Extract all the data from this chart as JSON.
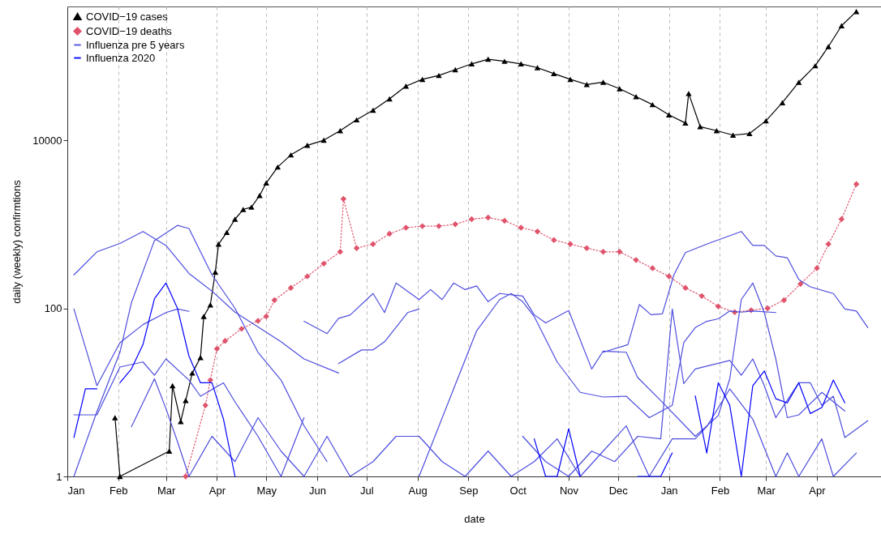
{
  "chart_data": {
    "type": "line",
    "xlabel": "date",
    "ylabel": "daily (weekly) confirmtions",
    "log": true,
    "grid": "x",
    "legend": "top left",
    "xlim": [
      "2020-01-01",
      "2021-05-10"
    ],
    "ylim": [
      1,
      390000
    ],
    "yticks": [
      1,
      100,
      10000
    ],
    "xticks": [
      {
        "value": "2020-01-01",
        "label": "Jan"
      },
      {
        "value": "2020-02-01",
        "label": "Feb"
      },
      {
        "value": "2020-03-01",
        "label": "Mar"
      },
      {
        "value": "2020-04-01",
        "label": "Apr"
      },
      {
        "value": "2020-05-01",
        "label": "May"
      },
      {
        "value": "2020-06-01",
        "label": "Jun"
      },
      {
        "value": "2020-07-01",
        "label": "Jul"
      },
      {
        "value": "2020-08-01",
        "label": "Aug"
      },
      {
        "value": "2020-09-01",
        "label": "Sep"
      },
      {
        "value": "2020-10-01",
        "label": "Oct"
      },
      {
        "value": "2020-11-01",
        "label": "Nov"
      },
      {
        "value": "2020-12-01",
        "label": "Dec"
      },
      {
        "value": "2021-01-01",
        "label": "Jan"
      },
      {
        "value": "2021-02-01",
        "label": "Feb"
      },
      {
        "value": "2021-03-01",
        "label": "Mar"
      },
      {
        "value": "2021-04-01",
        "label": "Apr"
      }
    ],
    "series": [
      {
        "name": "COVID−19 cases",
        "color": "#000000",
        "marker": "triangle",
        "line_style": "solid",
        "x": [
          "2020-01-30",
          "2020-02-02",
          "2020-03-03",
          "2020-03-05",
          "2020-03-10",
          "2020-03-13",
          "2020-03-17",
          "2020-03-22",
          "2020-03-24",
          "2020-03-28",
          "2020-03-31",
          "2020-04-02",
          "2020-04-07",
          "2020-04-12",
          "2020-04-17",
          "2020-04-22",
          "2020-04-27",
          "2020-05-01",
          "2020-05-08",
          "2020-05-16",
          "2020-05-26",
          "2020-06-05",
          "2020-06-15",
          "2020-06-25",
          "2020-07-05",
          "2020-07-15",
          "2020-07-25",
          "2020-08-04",
          "2020-08-14",
          "2020-08-24",
          "2020-09-03",
          "2020-09-13",
          "2020-09-23",
          "2020-10-03",
          "2020-10-13",
          "2020-10-23",
          "2020-11-02",
          "2020-11-12",
          "2020-11-22",
          "2020-12-02",
          "2020-12-12",
          "2020-12-22",
          "2021-01-01",
          "2021-01-11",
          "2021-01-13",
          "2021-01-20",
          "2021-01-30",
          "2021-02-09",
          "2021-02-19",
          "2021-03-01",
          "2021-03-11",
          "2021-03-21",
          "2021-03-31",
          "2021-04-08",
          "2021-04-16",
          "2021-04-25"
        ],
        "values": [
          5,
          1,
          2,
          12,
          4.5,
          8,
          17,
          26,
          80,
          110,
          270,
          580,
          800,
          1150,
          1500,
          1600,
          2200,
          3100,
          4800,
          6700,
          8700,
          10000,
          13000,
          17500,
          22800,
          31000,
          44000,
          53000,
          59000,
          69000,
          81000,
          92000,
          87000,
          81000,
          73000,
          62000,
          53000,
          46000,
          49000,
          41000,
          33000,
          26500,
          20000,
          16000,
          36000,
          14500,
          13000,
          11500,
          12000,
          17000,
          28000,
          49000,
          77000,
          130000,
          230000,
          340000
        ]
      },
      {
        "name": "COVID−19 deaths",
        "color": "#df536b",
        "marker": "diamond",
        "line_style": "dotted",
        "x": [
          "2020-03-13",
          "2020-03-25",
          "2020-03-28",
          "2020-04-01",
          "2020-04-06",
          "2020-04-16",
          "2020-04-26",
          "2020-05-01",
          "2020-05-06",
          "2020-05-16",
          "2020-05-26",
          "2020-06-05",
          "2020-06-15",
          "2020-06-17",
          "2020-06-25",
          "2020-07-05",
          "2020-07-15",
          "2020-07-25",
          "2020-08-04",
          "2020-08-14",
          "2020-08-24",
          "2020-09-03",
          "2020-09-13",
          "2020-09-23",
          "2020-10-03",
          "2020-10-13",
          "2020-10-23",
          "2020-11-02",
          "2020-11-12",
          "2020-11-22",
          "2020-12-02",
          "2020-12-12",
          "2020-12-22",
          "2021-01-01",
          "2021-01-11",
          "2021-01-21",
          "2021-01-31",
          "2021-02-10",
          "2021-02-20",
          "2021-03-02",
          "2021-03-12",
          "2021-03-22",
          "2021-04-01",
          "2021-04-08",
          "2021-04-16",
          "2021-04-25"
        ],
        "values": [
          1,
          7,
          14,
          33,
          41,
          57,
          71,
          80,
          125,
          175,
          240,
          340,
          470,
          2000,
          520,
          580,
          770,
          910,
          950,
          950,
          1000,
          1150,
          1200,
          1100,
          910,
          820,
          650,
          580,
          520,
          470,
          470,
          375,
          300,
          240,
          175,
          140,
          105,
          90,
          95,
          100,
          125,
          195,
          300,
          580,
          1150,
          3000
        ]
      },
      {
        "name": "Influenza pre 5 years",
        "color": "#4d4dde",
        "marker": "none",
        "line_style": "solid",
        "x": [
          "2020-01-05",
          "2020-01-19",
          "2020-02-02",
          "2020-02-16",
          "2020-03-01",
          "2020-03-15",
          "2020-03-29",
          "2020-04-12",
          "2020-04-26",
          "2020-05-10",
          "2020-05-24",
          "2020-06-14",
          "2020-06-21",
          "2020-11-22",
          "2020-12-07",
          "2020-12-14",
          "2020-12-21",
          "2020-12-28",
          "2021-01-04",
          "2021-01-11",
          "2021-01-25",
          "2021-02-14",
          "2021-02-21",
          "2021-02-28",
          "2021-03-07",
          "2021-03-14",
          "2021-03-21",
          "2021-03-28",
          "2021-04-11",
          "2021-04-18",
          "2021-04-25",
          "2021-05-02"
        ],
        "values": [
          250,
          470,
          590,
          820,
          560,
          260,
          160,
          90,
          60,
          40,
          25,
          17,
          null,
          30,
          37,
          111,
          84,
          86,
          250,
          460,
          590,
          820,
          560,
          560,
          420,
          400,
          220,
          180,
          150,
          98,
          93,
          59
        ]
      },
      {
        "color": "#4d4dde",
        "marker": "none",
        "line_style": "solid",
        "x": [
          "2020-01-05",
          "2020-01-19",
          "2020-02-02",
          "2020-02-09",
          "2020-02-23",
          "2020-03-08",
          "2020-03-15",
          "2020-03-29",
          "2020-04-12",
          "2020-04-26",
          "2020-05-10",
          "2020-05-24",
          "2020-06-07",
          "2020-06-14",
          "2020-08-02",
          "2020-08-23",
          "2020-09-06",
          "2020-09-20",
          "2020-09-27",
          "2020-10-04",
          "2020-10-11",
          "2020-10-25",
          "2020-11-08",
          "2020-11-22",
          "2020-12-06",
          "2020-12-20",
          "2021-01-03",
          "2021-01-10",
          "2021-01-17",
          "2021-01-24",
          "2021-01-31",
          "2021-02-07",
          "2021-02-14",
          "2021-02-21",
          "2021-03-07"
        ],
        "values": [
          1,
          5.9,
          30,
          117,
          640,
          970,
          890,
          250,
          100,
          30,
          14,
          4,
          1.5,
          null,
          1,
          11,
          54,
          127,
          150,
          120,
          80,
          23,
          10,
          8.8,
          9,
          5,
          7,
          39,
          59,
          70,
          75,
          93,
          90,
          93,
          89
        ]
      },
      {
        "color": "#4d4dde",
        "marker": "none",
        "line_style": "solid",
        "x": [
          "2020-01-05",
          "2020-01-19",
          "2020-02-02",
          "2020-02-16",
          "2020-03-01",
          "2020-03-08",
          "2020-03-15",
          "2020-03-22",
          "2020-05-24",
          "2020-06-07",
          "2020-06-14",
          "2020-06-21",
          "2020-07-05",
          "2020-07-12",
          "2020-07-19",
          "2020-08-02",
          "2020-08-09",
          "2020-08-16",
          "2020-08-23",
          "2020-08-30",
          "2020-09-06",
          "2020-09-13",
          "2020-09-20",
          "2020-10-04",
          "2020-10-11",
          "2020-10-18",
          "2020-11-01",
          "2020-11-15",
          "2020-11-22",
          "2020-12-06",
          "2020-12-13",
          "2020-12-27",
          "2021-01-17",
          "2021-01-31",
          "2021-02-07",
          "2021-02-14",
          "2021-02-21",
          "2021-02-28",
          "2021-03-07",
          "2021-03-14",
          "2021-03-21",
          "2021-04-04",
          "2021-04-18"
        ],
        "values": [
          98,
          12,
          39,
          64,
          89,
          98,
          92,
          null,
          70,
          50,
          76,
          83,
          150,
          89,
          200,
          127,
          167,
          127,
          200,
          167,
          185,
          120,
          150,
          140,
          84,
          67,
          94,
          19,
          31,
          30,
          15,
          8,
          3,
          5.3,
          14.5,
          127,
          200,
          89,
          25,
          5,
          5.4,
          10,
          6
        ]
      },
      {
        "color": "#4d4dde",
        "marker": "none",
        "line_style": "solid",
        "x": [
          "2020-01-05",
          "2020-01-19",
          "2020-02-02",
          "2020-02-16",
          "2020-02-23",
          "2020-03-01",
          "2020-03-15",
          "2020-03-22",
          "2020-04-05",
          "2020-04-12",
          "2020-04-26",
          "2020-05-10",
          "2020-05-24",
          "2020-05-31",
          "2020-06-14",
          "2020-06-28",
          "2020-07-05",
          "2020-07-12",
          "2020-07-26",
          "2020-08-02",
          "2020-08-09",
          "2020-10-04",
          "2020-10-18",
          "2020-11-01",
          "2020-11-15",
          "2020-11-29",
          "2020-12-13",
          "2020-12-27",
          "2021-01-03",
          "2021-01-10",
          "2021-01-17",
          "2021-02-07",
          "2021-02-14",
          "2021-02-21",
          "2021-02-28",
          "2021-03-07",
          "2021-03-21",
          "2021-03-28",
          "2021-04-04",
          "2021-04-11",
          "2021-04-18",
          "2021-05-02"
        ],
        "values": [
          5.4,
          5.4,
          20,
          23,
          16,
          25,
          14,
          9,
          13,
          7.7,
          3,
          1,
          5,
          null,
          22,
          32,
          32,
          40,
          89,
          98,
          null,
          3,
          1.5,
          1,
          2,
          1.5,
          3,
          2.8,
          98,
          12.7,
          19,
          24,
          16,
          25,
          12,
          5,
          13,
          13,
          7,
          9,
          2.9,
          4.6
        ]
      },
      {
        "color": "#4d4dde",
        "marker": "none",
        "line_style": "solid",
        "x": [
          "2020-02-09",
          "2020-02-23",
          "2020-03-01",
          "2020-03-08",
          "2020-03-15",
          "2020-03-29",
          "2020-04-12",
          "2020-04-26",
          "2020-05-10",
          "2020-05-24",
          "2020-06-07",
          "2020-06-21",
          "2020-07-05",
          "2020-07-19",
          "2020-08-02",
          "2020-08-16",
          "2020-08-30",
          "2020-09-13",
          "2020-09-27",
          "2020-10-11",
          "2020-10-25",
          "2020-11-08",
          "2020-11-22",
          "2020-12-06",
          "2020-12-20",
          "2021-01-03",
          "2021-01-10",
          "2021-01-17",
          "2021-01-24",
          "2021-02-07",
          "2021-02-21",
          "2021-03-07",
          "2021-03-14",
          "2021-03-21",
          "2021-04-04",
          "2021-04-11",
          "2021-04-25"
        ],
        "values": [
          3.9,
          14.5,
          6.4,
          2.6,
          1,
          3,
          1.5,
          5,
          2,
          1,
          3,
          1,
          1.5,
          3,
          3,
          1.5,
          1,
          2,
          1,
          1.5,
          2.8,
          1,
          2,
          4,
          1,
          2.8,
          2.8,
          2.8,
          3.9,
          11,
          4.8,
          1,
          1.9,
          1,
          2.8,
          1,
          1.9
        ]
      },
      {
        "name": "Influenza 2020",
        "color": "#0000ff",
        "marker": "none",
        "line_style": "solid",
        "x": [
          "2020-01-05",
          "2020-01-12",
          "2020-01-19",
          "2020-01-26",
          "2020-02-02",
          "2020-02-09",
          "2020-02-16",
          "2020-02-23",
          "2020-03-01",
          "2020-03-08",
          "2020-03-15",
          "2020-03-22",
          "2020-03-29",
          "2020-04-05",
          "2020-04-12",
          "2020-04-19",
          "2020-10-04",
          "2020-10-11",
          "2020-10-18",
          "2020-10-25",
          "2020-11-01",
          "2020-11-08",
          "2020-11-15",
          "2020-12-06",
          "2020-12-13",
          "2020-12-20",
          "2020-12-27",
          "2021-01-03",
          "2021-01-10",
          "2021-01-17",
          "2021-01-24",
          "2021-01-31",
          "2021-02-07",
          "2021-02-14",
          "2021-02-21",
          "2021-02-28",
          "2021-03-07",
          "2021-03-14",
          "2021-03-21",
          "2021-03-28",
          "2021-04-04",
          "2021-04-11",
          "2021-04-18"
        ],
        "values": [
          2.9,
          11,
          11,
          null,
          13,
          19,
          37,
          130,
          200,
          100,
          27,
          13,
          13,
          4.8,
          1,
          null,
          null,
          2.8,
          1,
          1,
          3.7,
          1,
          null,
          null,
          1,
          1,
          1,
          1.9,
          null,
          9.1,
          1.9,
          13,
          7,
          1,
          12,
          18,
          8.4,
          7.5,
          13,
          5.6,
          6.6,
          14,
          7.5
        ]
      }
    ]
  }
}
